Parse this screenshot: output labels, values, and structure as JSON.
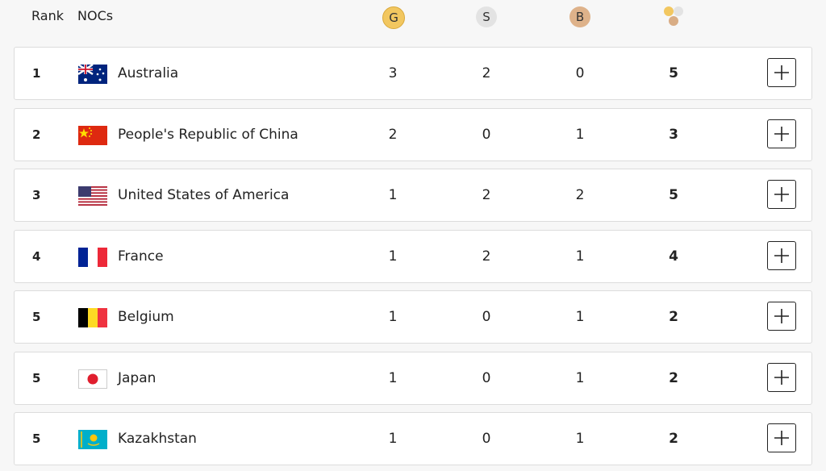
{
  "header": {
    "rank": "Rank",
    "nocs": "NOCs",
    "gold": "G",
    "silver": "S",
    "bronze": "B"
  },
  "table": {
    "rows": [
      {
        "rank": 1,
        "noc": "Australia",
        "gold": 3,
        "silver": 2,
        "bronze": 0,
        "total": 5
      },
      {
        "rank": 2,
        "noc": "People's Republic of China",
        "gold": 2,
        "silver": 0,
        "bronze": 1,
        "total": 3
      },
      {
        "rank": 3,
        "noc": "United States of America",
        "gold": 1,
        "silver": 2,
        "bronze": 2,
        "total": 5
      },
      {
        "rank": 4,
        "noc": "France",
        "gold": 1,
        "silver": 2,
        "bronze": 1,
        "total": 4
      },
      {
        "rank": 5,
        "noc": "Belgium",
        "gold": 1,
        "silver": 0,
        "bronze": 1,
        "total": 2
      },
      {
        "rank": 5,
        "noc": "Japan",
        "gold": 1,
        "silver": 0,
        "bronze": 1,
        "total": 2
      },
      {
        "rank": 5,
        "noc": "Kazakhstan",
        "gold": 1,
        "silver": 0,
        "bronze": 1,
        "total": 2
      }
    ]
  }
}
